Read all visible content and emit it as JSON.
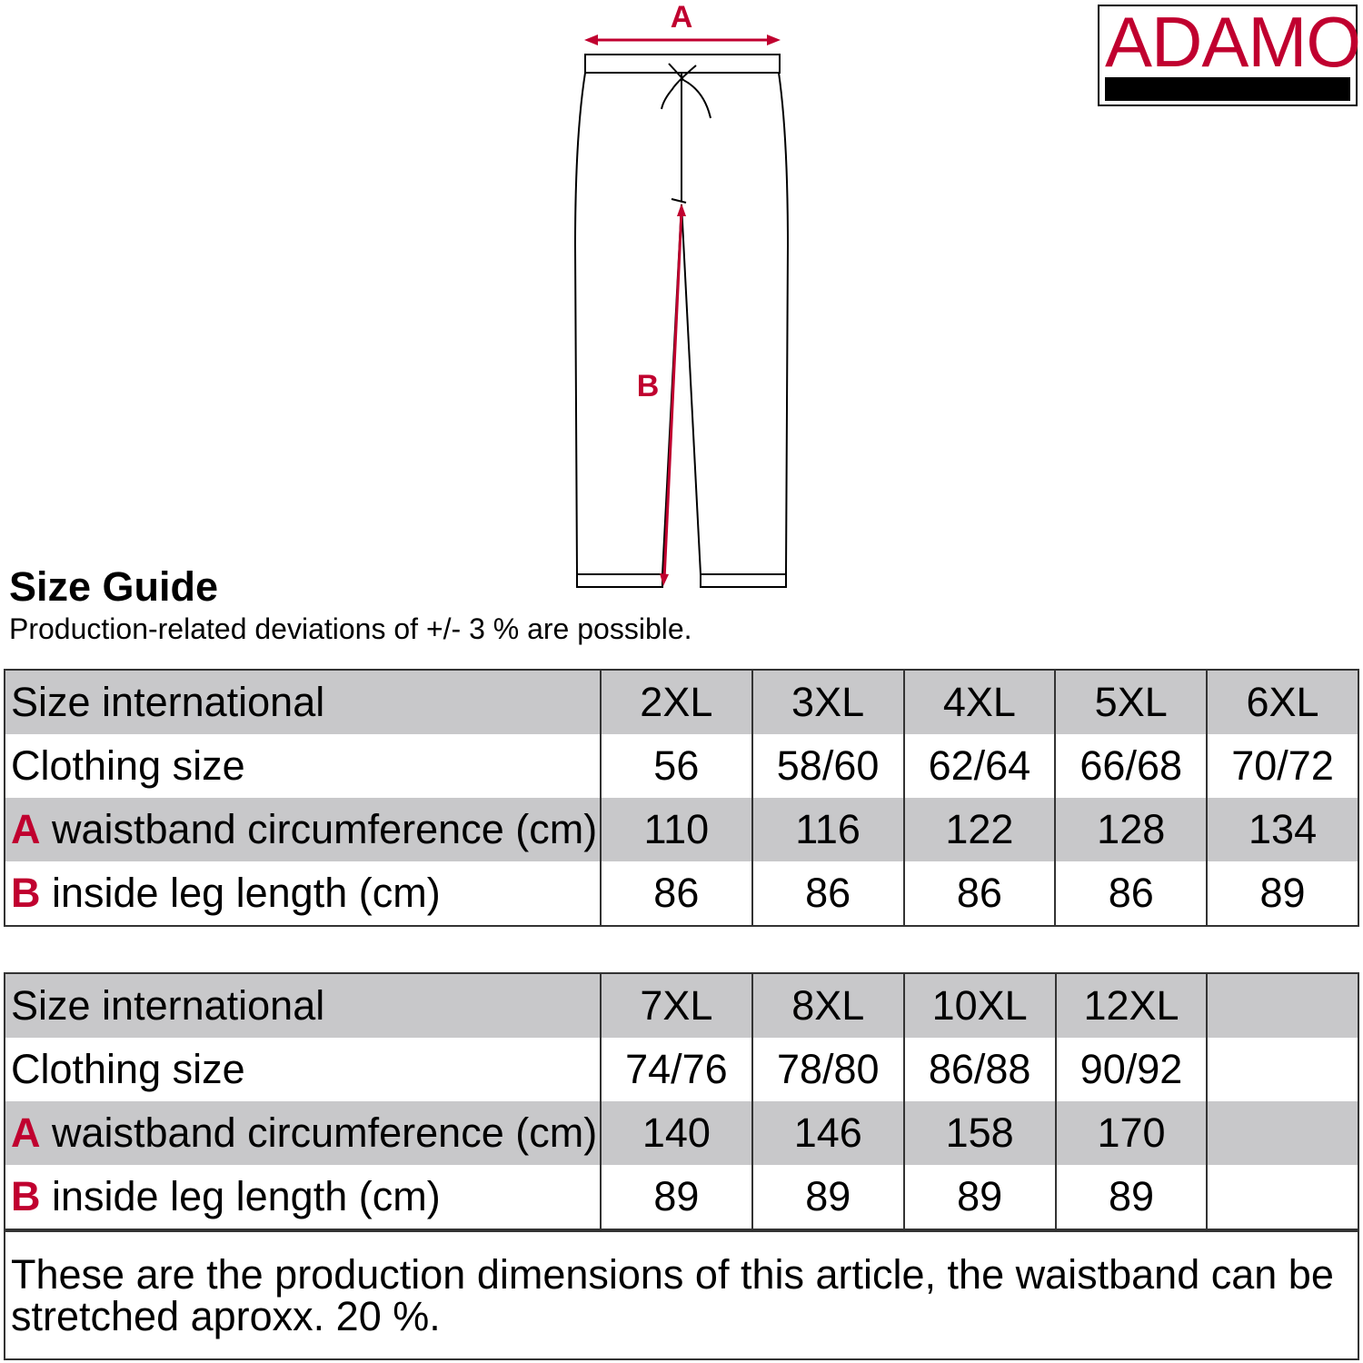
{
  "diagram": {
    "label_a": "A",
    "label_b": "B",
    "accent_color": "#c0002f"
  },
  "logo": {
    "text": "ADAMO"
  },
  "header": {
    "title": "Size Guide",
    "subtitle": "Production-related deviations of +/- 3 % are possible."
  },
  "table1": {
    "rows": [
      {
        "prefix": "",
        "label": "Size international",
        "values": [
          "2XL",
          "3XL",
          "4XL",
          "5XL",
          "6XL"
        ]
      },
      {
        "prefix": "",
        "label": "Clothing size",
        "values": [
          "56",
          "58/60",
          "62/64",
          "66/68",
          "70/72"
        ]
      },
      {
        "prefix": "A",
        "label": " waistband circumference (cm)",
        "values": [
          "110",
          "116",
          "122",
          "128",
          "134"
        ]
      },
      {
        "prefix": "B",
        "label": " inside leg length (cm)",
        "values": [
          "86",
          "86",
          "86",
          "86",
          "89"
        ]
      }
    ]
  },
  "table2": {
    "rows": [
      {
        "prefix": "",
        "label": "Size international",
        "values": [
          "7XL",
          "8XL",
          "10XL",
          "12XL",
          ""
        ]
      },
      {
        "prefix": "",
        "label": "Clothing size",
        "values": [
          "74/76",
          "78/80",
          "86/88",
          "90/92",
          ""
        ]
      },
      {
        "prefix": "A",
        "label": " waistband circumference (cm)",
        "values": [
          "140",
          "146",
          "158",
          "170",
          ""
        ]
      },
      {
        "prefix": "B",
        "label": " inside leg length (cm)",
        "values": [
          "89",
          "89",
          "89",
          "89",
          ""
        ]
      }
    ]
  },
  "note": "These are the production dimensions of this article, the waistband can be stretched aproxx. 20 %."
}
